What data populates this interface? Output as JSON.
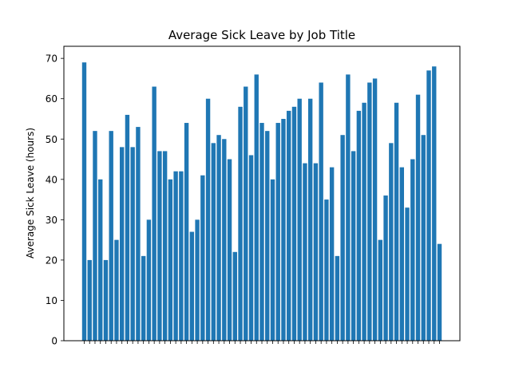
{
  "chart_data": {
    "type": "bar",
    "title": "Average Sick Leave by Job Title",
    "xlabel": "",
    "ylabel": "Average Sick Leave (hours)",
    "ylim": [
      0,
      73
    ],
    "yticks": [
      0,
      10,
      20,
      30,
      40,
      50,
      60,
      70
    ],
    "grid": false,
    "bar_color": "#1f77b4",
    "values": [
      69,
      20,
      52,
      40,
      20,
      52,
      25,
      48,
      56,
      48,
      53,
      21,
      30,
      63,
      47,
      47,
      40,
      42,
      42,
      54,
      27,
      30,
      41,
      60,
      49,
      51,
      50,
      45,
      22,
      58,
      63,
      46,
      66,
      54,
      52,
      40,
      54,
      55,
      57,
      58,
      60,
      44,
      60,
      44,
      64,
      35,
      43,
      21,
      51,
      66,
      47,
      57,
      59,
      64,
      65,
      25,
      36,
      49,
      59,
      43,
      33,
      45,
      61,
      51,
      67,
      68,
      24
    ]
  }
}
